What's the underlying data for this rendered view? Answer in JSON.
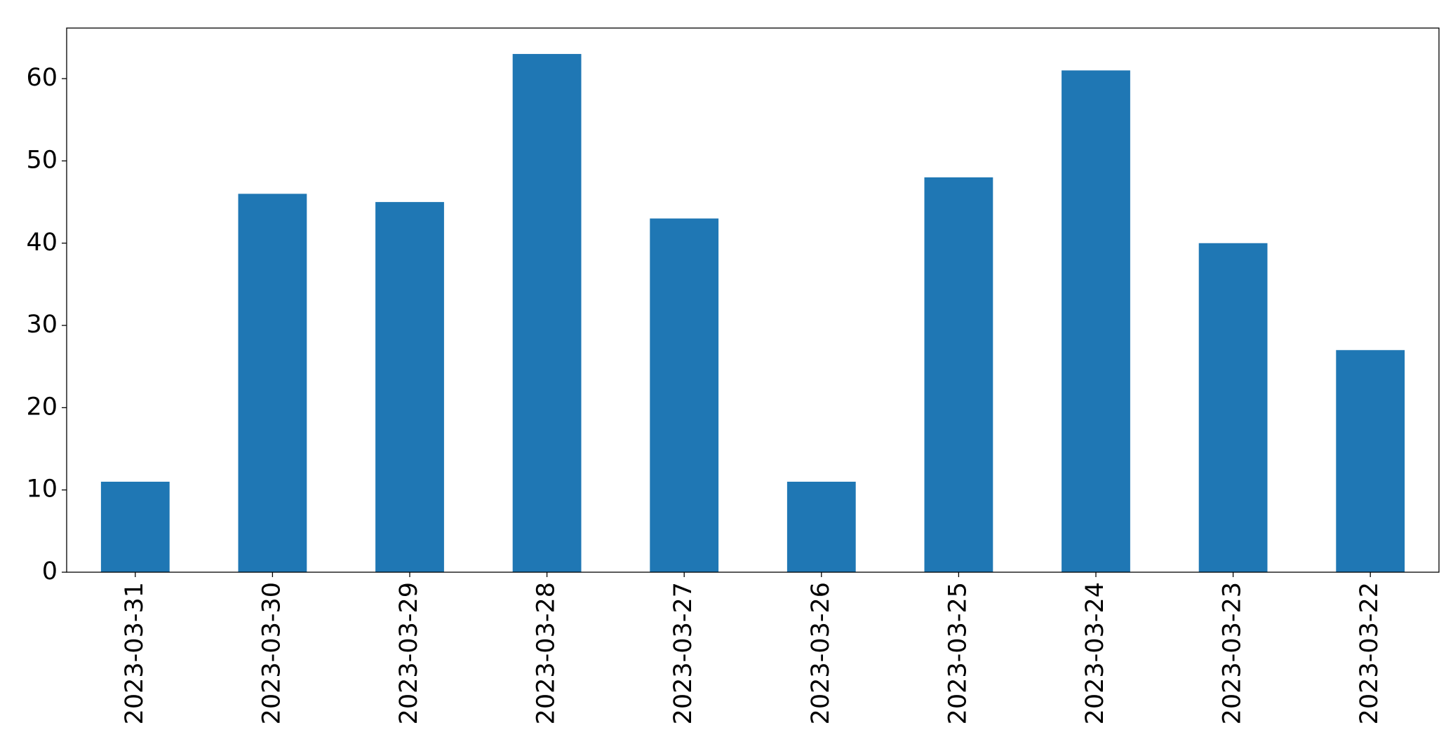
{
  "chart_data": {
    "type": "bar",
    "categories": [
      "2023-03-31",
      "2023-03-30",
      "2023-03-29",
      "2023-03-28",
      "2023-03-27",
      "2023-03-26",
      "2023-03-25",
      "2023-03-24",
      "2023-03-23",
      "2023-03-22"
    ],
    "values": [
      11,
      46,
      45,
      63,
      43,
      11,
      48,
      61,
      40,
      27
    ],
    "color": "#1f77b4",
    "ylim": [
      0,
      66.15
    ],
    "yticks": [
      0,
      10,
      20,
      30,
      40,
      50,
      60
    ],
    "grid": false
  }
}
